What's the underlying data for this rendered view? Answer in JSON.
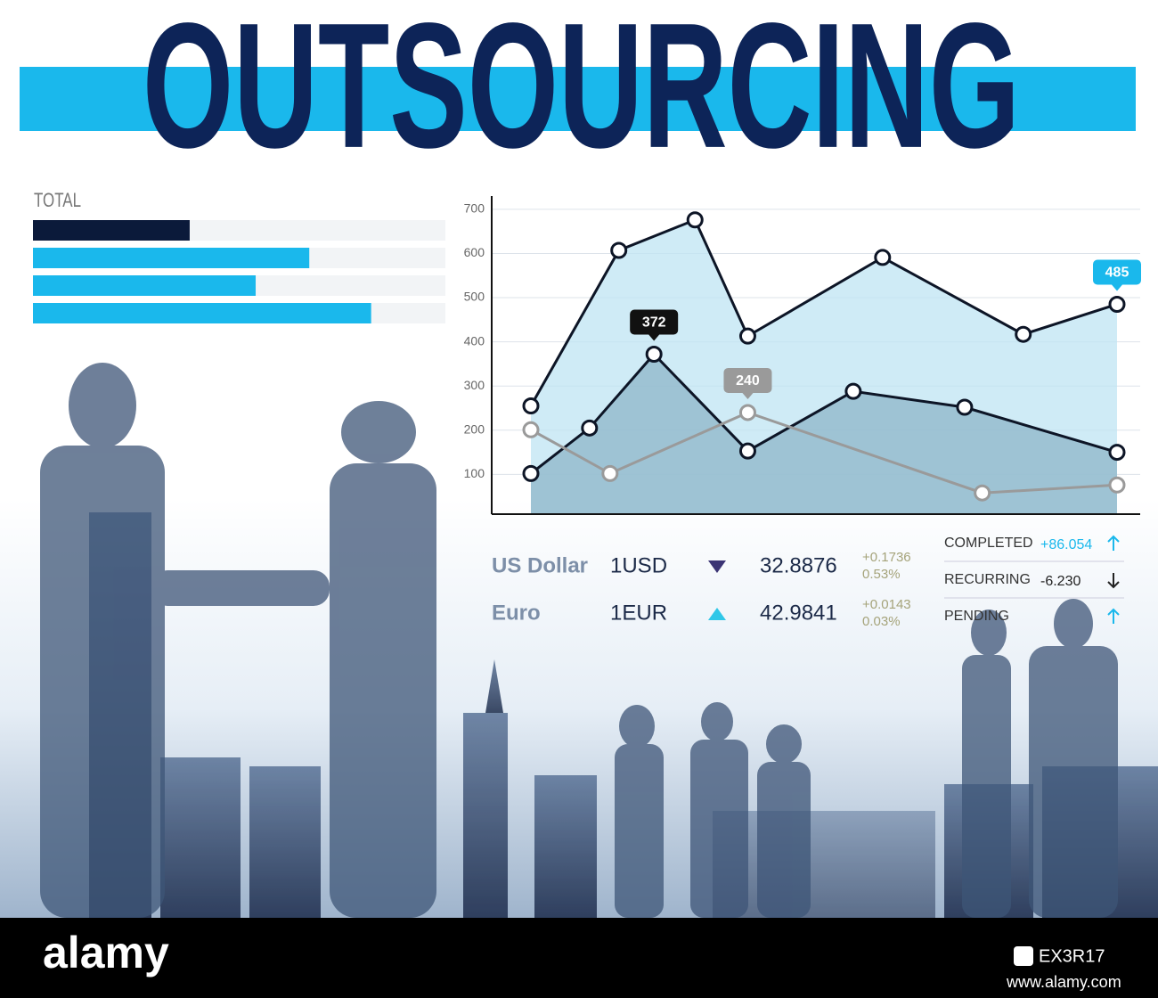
{
  "title": "OUTSOURCING",
  "totals": {
    "type": "bar",
    "label": "TOTAL",
    "values": [
      38,
      67,
      54,
      82
    ],
    "colors": [
      "#0b1a3a",
      "#1ab8ec",
      "#1ab8ec",
      "#1ab8ec"
    ],
    "xlim": [
      0,
      100
    ]
  },
  "chart_data": {
    "type": "line",
    "xlim": [
      0,
      100
    ],
    "ylim": [
      10,
      730
    ],
    "yticks": [
      100,
      200,
      300,
      400,
      500,
      600,
      700
    ],
    "grid": true,
    "series": [
      {
        "color": "#0d1526",
        "fill": "#bfe4f3",
        "x": [
          0,
          15,
          28,
          37,
          60,
          84,
          100
        ],
        "values": [
          255,
          607,
          676,
          413,
          591,
          417,
          485
        ],
        "value_labels": [
          null,
          null,
          null,
          null,
          null,
          null,
          "485"
        ],
        "label_color": "#1ab8ec"
      },
      {
        "color": "#0d1526",
        "fill": "#8db5c8",
        "x": [
          0,
          10,
          21,
          37,
          55,
          74,
          100
        ],
        "values": [
          102,
          205,
          372,
          153,
          288,
          252,
          150
        ],
        "value_labels": [
          null,
          null,
          "372",
          null,
          null,
          null,
          null
        ],
        "label_color": "#111111"
      },
      {
        "color": "#9a9a9a",
        "fill": null,
        "x": [
          0,
          13.5,
          37,
          77,
          100
        ],
        "values": [
          201,
          102,
          240,
          58,
          76
        ],
        "value_labels": [
          null,
          null,
          "240",
          null,
          null
        ],
        "label_color": "#9a9a9a"
      }
    ]
  },
  "currencies": [
    {
      "name": "US Dollar",
      "unit": "1USD",
      "trend": "down",
      "rate": "32.8876",
      "change": "+0.1736",
      "percent": "0.53%"
    },
    {
      "name": "Euro",
      "unit": "1EUR",
      "trend": "up",
      "rate": "42.9841",
      "change": "+0.0143",
      "percent": "0.03%"
    }
  ],
  "status": [
    {
      "label": "COMPLETED",
      "value": "+86.054",
      "trend": "up"
    },
    {
      "label": "RECURRING",
      "value": "-6.230",
      "trend": "down"
    },
    {
      "label": "PENDING",
      "trend": "up"
    }
  ],
  "footer": {
    "brand": "alamy",
    "image_id": "EX3R17",
    "url": "www.alamy.com"
  }
}
